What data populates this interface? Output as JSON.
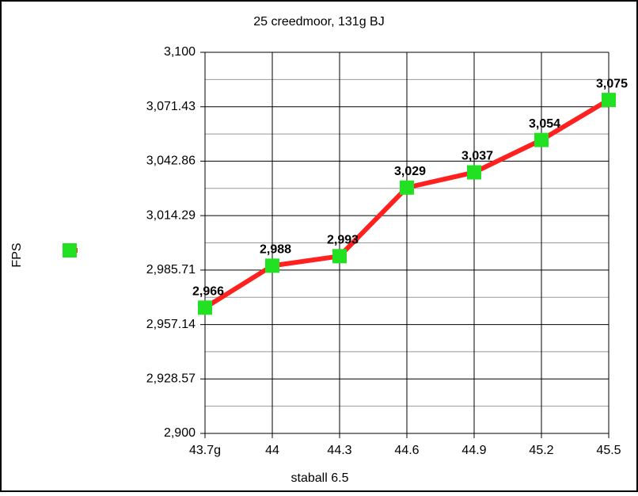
{
  "chart_data": {
    "type": "line",
    "title": "25 creedmoor, 131g BJ",
    "x_label": "staball 6.5",
    "y_label": "FPS",
    "categories": [
      "43.7g",
      "44",
      "44.3",
      "44.6",
      "44.9",
      "45.2",
      "45.5"
    ],
    "series": [
      {
        "color": "#ff2020",
        "marker_color": "#22e022",
        "values": [
          2966,
          2988,
          2993,
          3029,
          3037,
          3054,
          3075
        ],
        "value_labels": [
          "2,966",
          "2,988",
          "2,993",
          "3,029",
          "3,037",
          "3,054",
          "3,075"
        ]
      }
    ],
    "ylim": [
      2900,
      3100
    ],
    "yticks": [
      {
        "value": 2900,
        "label": "2,900"
      },
      {
        "value": 2928.57,
        "label": "2,928.57"
      },
      {
        "value": 2957.14,
        "label": "2,957.14"
      },
      {
        "value": 2985.71,
        "label": "2,985.71"
      },
      {
        "value": 3014.29,
        "label": "3,014.29"
      },
      {
        "value": 3042.86,
        "label": "3,042.86"
      },
      {
        "value": 3071.43,
        "label": "3,071.43"
      },
      {
        "value": 3100,
        "label": "3,100"
      }
    ],
    "grid": true,
    "legend": "left"
  }
}
